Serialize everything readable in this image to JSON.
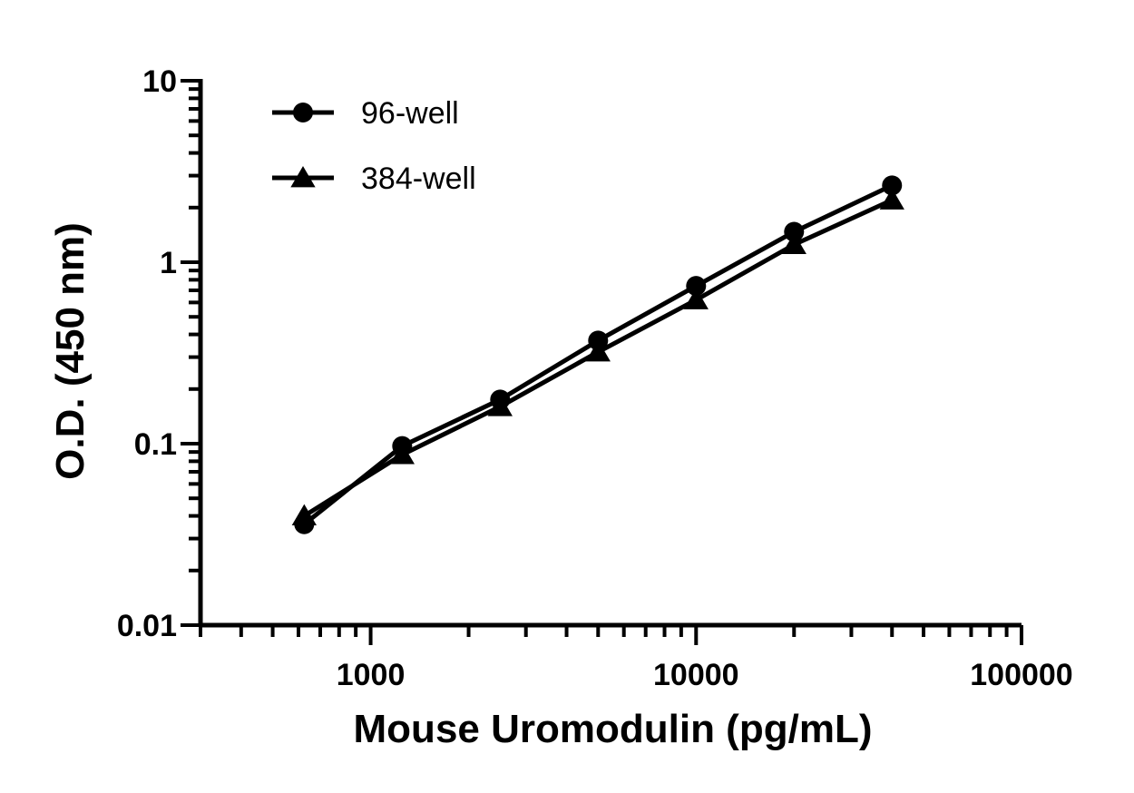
{
  "chart_data": {
    "type": "line",
    "xlabel": "Mouse Uromodulin (pg/mL)",
    "ylabel": "O.D. (450 nm)",
    "x_scale": "log",
    "y_scale": "log",
    "xlim": [
      300,
      100000
    ],
    "ylim": [
      0.01,
      10
    ],
    "x_tick_labels": [
      "1000",
      "10000",
      "100000"
    ],
    "y_tick_labels": [
      "0.01",
      "0.1",
      "1",
      "10"
    ],
    "grid": false,
    "legend_position": "top-left",
    "colors": {
      "series": "#000000"
    },
    "series": [
      {
        "name": "96-well",
        "marker": "circle",
        "x": [
          625,
          1250,
          2500,
          5000,
          10000,
          20000,
          40000
        ],
        "y": [
          0.036,
          0.097,
          0.175,
          0.37,
          0.74,
          1.47,
          2.65
        ]
      },
      {
        "name": "384-well",
        "marker": "triangle",
        "x": [
          625,
          1250,
          2500,
          5000,
          10000,
          20000,
          40000
        ],
        "y": [
          0.04,
          0.087,
          0.16,
          0.32,
          0.62,
          1.25,
          2.2
        ]
      }
    ]
  }
}
